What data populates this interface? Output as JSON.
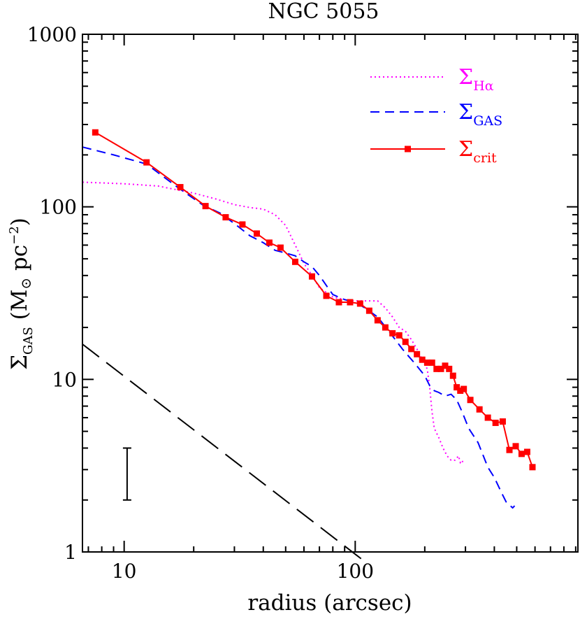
{
  "chart_data": {
    "type": "line",
    "title": "NGC 5055",
    "xlabel": "radius (arcsec)",
    "ylabel_symbol": "Σ",
    "ylabel_subscript": "GAS",
    "ylabel_units": " (M",
    "ylabel_sun": "⊙",
    "ylabel_units2": " pc",
    "ylabel_exponent": "−2",
    "ylabel_close": ")",
    "xscale": "log",
    "yscale": "log",
    "xlim": [
      6.6,
      920
    ],
    "ylim": [
      1,
      1000
    ],
    "xticks": [
      10,
      100
    ],
    "xtick_labels": [
      "10",
      "100"
    ],
    "yticks": [
      1,
      10,
      100,
      1000
    ],
    "ytick_labels": [
      "1",
      "10",
      "100",
      "1000"
    ],
    "legend_position": "top-right",
    "series": [
      {
        "id": "halpha",
        "legend_symbol": "Σ",
        "legend_sub": "Hα",
        "color": "#ff00ff",
        "style": "dotted",
        "markers": false,
        "points": [
          [
            6.6,
            139
          ],
          [
            10,
            136
          ],
          [
            14,
            132
          ],
          [
            20,
            120
          ],
          [
            25,
            111
          ],
          [
            30,
            103
          ],
          [
            35,
            99
          ],
          [
            40,
            97
          ],
          [
            45,
            90
          ],
          [
            50,
            78
          ],
          [
            55,
            60
          ],
          [
            60,
            47
          ],
          [
            65,
            40
          ],
          [
            70,
            34
          ],
          [
            80,
            30
          ],
          [
            90,
            29
          ],
          [
            100,
            28.5
          ],
          [
            110,
            28.5
          ],
          [
            125,
            28.5
          ],
          [
            135,
            26
          ],
          [
            145,
            23
          ],
          [
            155,
            20
          ],
          [
            165,
            19
          ],
          [
            175,
            17
          ],
          [
            185,
            15
          ],
          [
            195,
            13
          ],
          [
            205,
            11.5
          ],
          [
            210,
            9
          ],
          [
            215,
            6.5
          ],
          [
            220,
            5.2
          ],
          [
            230,
            4.6
          ],
          [
            240,
            4.0
          ],
          [
            250,
            3.6
          ],
          [
            260,
            3.4
          ],
          [
            270,
            3.4
          ],
          [
            280,
            3.6
          ],
          [
            285,
            3.3
          ],
          [
            290,
            3.4
          ],
          [
            295,
            3.2
          ]
        ]
      },
      {
        "id": "gas",
        "legend_symbol": "Σ",
        "legend_sub": "GAS",
        "color": "#0000ff",
        "style": "dashed",
        "markers": false,
        "points": [
          [
            6.6,
            222
          ],
          [
            9,
            200
          ],
          [
            12.5,
            177
          ],
          [
            17,
            130
          ],
          [
            22,
            102
          ],
          [
            26,
            92
          ],
          [
            30,
            80
          ],
          [
            35,
            68
          ],
          [
            40,
            62
          ],
          [
            45,
            56
          ],
          [
            50,
            54
          ],
          [
            55,
            52
          ],
          [
            60,
            48
          ],
          [
            65,
            45
          ],
          [
            70,
            40
          ],
          [
            75,
            35
          ],
          [
            80,
            31
          ],
          [
            90,
            29
          ],
          [
            100,
            28
          ],
          [
            110,
            26
          ],
          [
            125,
            23
          ],
          [
            140,
            19
          ],
          [
            160,
            15
          ],
          [
            180,
            12.5
          ],
          [
            200,
            10.5
          ],
          [
            210,
            9.2
          ],
          [
            220,
            8.6
          ],
          [
            230,
            8.4
          ],
          [
            245,
            8.0
          ],
          [
            260,
            8.2
          ],
          [
            275,
            7.6
          ],
          [
            290,
            6.5
          ],
          [
            310,
            5.2
          ],
          [
            340,
            4.3
          ],
          [
            375,
            3.1
          ],
          [
            400,
            2.7
          ],
          [
            430,
            2.2
          ],
          [
            450,
            1.95
          ],
          [
            480,
            1.8
          ],
          [
            490,
            1.85
          ]
        ]
      },
      {
        "id": "crit",
        "legend_symbol": "Σ",
        "legend_sub": "crit",
        "color": "#ff0000",
        "style": "solid",
        "markers": true,
        "points": [
          [
            7.5,
            270
          ],
          [
            12.5,
            181
          ],
          [
            17.5,
            130
          ],
          [
            22.5,
            101
          ],
          [
            27.5,
            87
          ],
          [
            32.5,
            79
          ],
          [
            37.5,
            70
          ],
          [
            42.5,
            62
          ],
          [
            47.5,
            58
          ],
          [
            55,
            48
          ],
          [
            65,
            39.5
          ],
          [
            75,
            30.5
          ],
          [
            85,
            28
          ],
          [
            95,
            28
          ],
          [
            105,
            27.5
          ],
          [
            115,
            25
          ],
          [
            125,
            22
          ],
          [
            135,
            20
          ],
          [
            145,
            18.5
          ],
          [
            155,
            18
          ],
          [
            165,
            16.5
          ],
          [
            175,
            15
          ],
          [
            185,
            14
          ],
          [
            195,
            13
          ],
          [
            205,
            12.5
          ],
          [
            215,
            12.5
          ],
          [
            225,
            11.5
          ],
          [
            235,
            11.5
          ],
          [
            245,
            12
          ],
          [
            255,
            11.5
          ],
          [
            265,
            10.5
          ],
          [
            275,
            9
          ],
          [
            285,
            8.6
          ],
          [
            295,
            8.8
          ],
          [
            315,
            7.6
          ],
          [
            345,
            6.7
          ],
          [
            375,
            6.0
          ],
          [
            405,
            5.6
          ],
          [
            435,
            5.7
          ],
          [
            465,
            3.9
          ],
          [
            495,
            4.1
          ],
          [
            525,
            3.7
          ],
          [
            555,
            3.8
          ],
          [
            585,
            3.1
          ]
        ]
      },
      {
        "id": "reference",
        "color": "#000000",
        "style": "longdash",
        "markers": false,
        "points": [
          [
            6.6,
            16
          ],
          [
            110,
            0.88
          ]
        ]
      }
    ],
    "error_bar": {
      "x": 10.3,
      "y_low": 2.0,
      "y_high": 4.0,
      "color": "#000000"
    }
  }
}
